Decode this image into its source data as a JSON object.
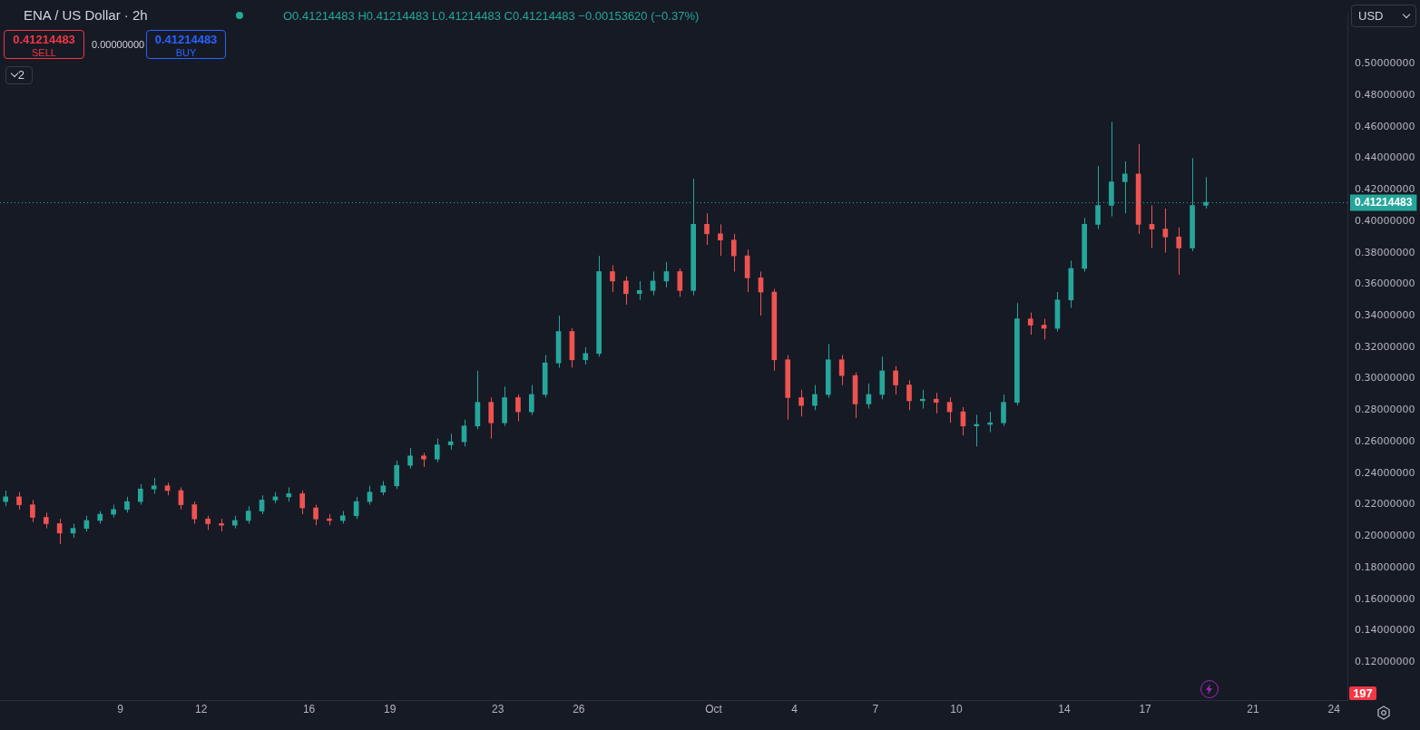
{
  "chart_data": {
    "type": "candlestick",
    "title": "ENA / US Dollar · 2h",
    "subtitle": "O0.41214483 H0.41214483 L0.41214483 C0.41214483 −0.00153620 (−0.37%)",
    "x": [
      "--09-04T18:00",
      "--09-05T06:00",
      "--09-05T18:00",
      "--09-06T06:00",
      "--09-06T18:00",
      "--09-07T06:00",
      "--09-07T18:00",
      "--09-08T06:00",
      "--09-08T18:00",
      "--09-09T06:00",
      "--09-09T18:00",
      "--09-10T06:00",
      "--09-10T18:00",
      "--09-11T06:00",
      "--09-11T18:00",
      "--09-12T06:00",
      "--09-12T18:00",
      "--09-13T06:00",
      "--09-13T18:00",
      "--09-14T06:00",
      "--09-14T18:00",
      "--09-15T06:00",
      "--09-15T18:00",
      "--09-16T06:00",
      "--09-16T18:00",
      "--09-17T06:00",
      "--09-17T18:00",
      "--09-18T06:00",
      "--09-18T18:00",
      "--09-19T06:00",
      "--09-19T18:00",
      "--09-20T06:00",
      "--09-20T18:00",
      "--09-21T06:00",
      "--09-21T18:00",
      "--09-22T06:00",
      "--09-22T18:00",
      "--09-23T06:00",
      "--09-23T18:00",
      "--09-24T06:00",
      "--09-24T18:00",
      "--09-25T06:00",
      "--09-25T18:00",
      "--09-26T06:00",
      "--09-26T18:00",
      "--09-27T06:00",
      "--09-27T18:00",
      "--09-28T06:00",
      "--09-28T18:00",
      "--09-29T06:00",
      "--09-29T18:00",
      "--09-30T06:00",
      "--09-30T18:00",
      "--10-01T06:00",
      "--10-01T18:00",
      "--10-02T06:00",
      "--10-02T18:00",
      "--10-03T06:00",
      "--10-03T18:00",
      "--10-04T06:00",
      "--10-04T18:00",
      "--10-05T06:00",
      "--10-05T18:00",
      "--10-06T06:00",
      "--10-06T18:00",
      "--10-07T06:00",
      "--10-07T18:00",
      "--10-08T06:00",
      "--10-08T18:00",
      "--10-09T06:00",
      "--10-09T18:00",
      "--10-10T06:00",
      "--10-10T18:00",
      "--10-11T06:00",
      "--10-11T18:00",
      "--10-12T06:00",
      "--10-12T18:00",
      "--10-13T06:00",
      "--10-13T18:00",
      "--10-14T06:00",
      "--10-14T18:00",
      "--10-15T06:00",
      "--10-15T18:00",
      "--10-16T06:00",
      "--10-16T18:00",
      "--10-17T06:00",
      "--10-17T18:00",
      "--10-18T06:00",
      "--10-18T18:00",
      "--10-19T06:00"
    ],
    "ohlc": [
      [
        0.222,
        0.229,
        0.219,
        0.225
      ],
      [
        0.225,
        0.228,
        0.217,
        0.22
      ],
      [
        0.22,
        0.223,
        0.209,
        0.212
      ],
      [
        0.212,
        0.215,
        0.205,
        0.208
      ],
      [
        0.208,
        0.211,
        0.195,
        0.202
      ],
      [
        0.202,
        0.208,
        0.199,
        0.205
      ],
      [
        0.205,
        0.213,
        0.203,
        0.21
      ],
      [
        0.21,
        0.216,
        0.208,
        0.214
      ],
      [
        0.214,
        0.22,
        0.212,
        0.217
      ],
      [
        0.217,
        0.225,
        0.215,
        0.222
      ],
      [
        0.222,
        0.233,
        0.22,
        0.23
      ],
      [
        0.23,
        0.237,
        0.227,
        0.232
      ],
      [
        0.232,
        0.234,
        0.226,
        0.229
      ],
      [
        0.229,
        0.231,
        0.217,
        0.22
      ],
      [
        0.22,
        0.222,
        0.208,
        0.211
      ],
      [
        0.211,
        0.213,
        0.204,
        0.208
      ],
      [
        0.208,
        0.211,
        0.203,
        0.207
      ],
      [
        0.207,
        0.213,
        0.205,
        0.21
      ],
      [
        0.21,
        0.219,
        0.208,
        0.216
      ],
      [
        0.216,
        0.226,
        0.214,
        0.223
      ],
      [
        0.223,
        0.228,
        0.221,
        0.225
      ],
      [
        0.225,
        0.231,
        0.222,
        0.227
      ],
      [
        0.227,
        0.229,
        0.214,
        0.218
      ],
      [
        0.218,
        0.22,
        0.207,
        0.211
      ],
      [
        0.211,
        0.214,
        0.207,
        0.21
      ],
      [
        0.21,
        0.216,
        0.208,
        0.213
      ],
      [
        0.213,
        0.225,
        0.211,
        0.222
      ],
      [
        0.222,
        0.232,
        0.22,
        0.228
      ],
      [
        0.228,
        0.235,
        0.226,
        0.232
      ],
      [
        0.232,
        0.248,
        0.23,
        0.245
      ],
      [
        0.245,
        0.256,
        0.243,
        0.251
      ],
      [
        0.251,
        0.253,
        0.244,
        0.249
      ],
      [
        0.249,
        0.262,
        0.247,
        0.258
      ],
      [
        0.258,
        0.265,
        0.255,
        0.26
      ],
      [
        0.26,
        0.274,
        0.257,
        0.27
      ],
      [
        0.27,
        0.305,
        0.268,
        0.285
      ],
      [
        0.285,
        0.288,
        0.262,
        0.272
      ],
      [
        0.272,
        0.295,
        0.27,
        0.288
      ],
      [
        0.288,
        0.29,
        0.273,
        0.279
      ],
      [
        0.279,
        0.296,
        0.277,
        0.29
      ],
      [
        0.29,
        0.315,
        0.288,
        0.31
      ],
      [
        0.31,
        0.34,
        0.307,
        0.33
      ],
      [
        0.33,
        0.332,
        0.307,
        0.312
      ],
      [
        0.312,
        0.32,
        0.309,
        0.316
      ],
      [
        0.316,
        0.378,
        0.314,
        0.368
      ],
      [
        0.368,
        0.372,
        0.355,
        0.362
      ],
      [
        0.362,
        0.365,
        0.347,
        0.354
      ],
      [
        0.354,
        0.362,
        0.35,
        0.356
      ],
      [
        0.356,
        0.368,
        0.353,
        0.362
      ],
      [
        0.362,
        0.374,
        0.358,
        0.368
      ],
      [
        0.368,
        0.37,
        0.352,
        0.356
      ],
      [
        0.356,
        0.427,
        0.353,
        0.398
      ],
      [
        0.398,
        0.405,
        0.385,
        0.392
      ],
      [
        0.392,
        0.398,
        0.378,
        0.388
      ],
      [
        0.388,
        0.392,
        0.368,
        0.378
      ],
      [
        0.378,
        0.382,
        0.355,
        0.364
      ],
      [
        0.364,
        0.368,
        0.34,
        0.355
      ],
      [
        0.355,
        0.357,
        0.305,
        0.312
      ],
      [
        0.312,
        0.315,
        0.274,
        0.288
      ],
      [
        0.288,
        0.293,
        0.276,
        0.283
      ],
      [
        0.283,
        0.296,
        0.28,
        0.29
      ],
      [
        0.29,
        0.322,
        0.288,
        0.312
      ],
      [
        0.312,
        0.315,
        0.296,
        0.302
      ],
      [
        0.302,
        0.304,
        0.275,
        0.284
      ],
      [
        0.284,
        0.297,
        0.281,
        0.29
      ],
      [
        0.29,
        0.314,
        0.287,
        0.305
      ],
      [
        0.305,
        0.308,
        0.29,
        0.296
      ],
      [
        0.296,
        0.299,
        0.28,
        0.286
      ],
      [
        0.286,
        0.293,
        0.281,
        0.287
      ],
      [
        0.287,
        0.291,
        0.278,
        0.285
      ],
      [
        0.285,
        0.288,
        0.272,
        0.279
      ],
      [
        0.279,
        0.282,
        0.264,
        0.27
      ],
      [
        0.27,
        0.277,
        0.257,
        0.271
      ],
      [
        0.271,
        0.279,
        0.266,
        0.272
      ],
      [
        0.272,
        0.29,
        0.27,
        0.285
      ],
      [
        0.285,
        0.348,
        0.283,
        0.338
      ],
      [
        0.338,
        0.342,
        0.328,
        0.334
      ],
      [
        0.334,
        0.338,
        0.325,
        0.332
      ],
      [
        0.332,
        0.355,
        0.33,
        0.35
      ],
      [
        0.35,
        0.375,
        0.345,
        0.37
      ],
      [
        0.37,
        0.402,
        0.368,
        0.398
      ],
      [
        0.398,
        0.435,
        0.395,
        0.41
      ],
      [
        0.41,
        0.463,
        0.403,
        0.425
      ],
      [
        0.425,
        0.438,
        0.405,
        0.43
      ],
      [
        0.43,
        0.449,
        0.392,
        0.398
      ],
      [
        0.398,
        0.41,
        0.383,
        0.395
      ],
      [
        0.395,
        0.408,
        0.38,
        0.39
      ],
      [
        0.39,
        0.396,
        0.366,
        0.383
      ],
      [
        0.383,
        0.44,
        0.381,
        0.41
      ],
      [
        0.41,
        0.428,
        0.408,
        0.412
      ]
    ],
    "colors": [
      "#26a69a",
      "#ef5350",
      "#ef5350",
      "#ef5350",
      "#ef5350",
      "#26a69a",
      "#26a69a",
      "#26a69a",
      "#26a69a",
      "#26a69a",
      "#26a69a",
      "#26a69a",
      "#ef5350",
      "#ef5350",
      "#ef5350",
      "#ef5350",
      "#ef5350",
      "#26a69a",
      "#26a69a",
      "#26a69a",
      "#26a69a",
      "#26a69a",
      "#ef5350",
      "#ef5350",
      "#ef5350",
      "#26a69a",
      "#26a69a",
      "#26a69a",
      "#26a69a",
      "#26a69a",
      "#26a69a",
      "#ef5350",
      "#26a69a",
      "#26a69a",
      "#26a69a",
      "#26a69a",
      "#ef5350",
      "#26a69a",
      "#ef5350",
      "#26a69a",
      "#26a69a",
      "#26a69a",
      "#ef5350",
      "#26a69a",
      "#26a69a",
      "#ef5350",
      "#ef5350",
      "#26a69a",
      "#26a69a",
      "#26a69a",
      "#ef5350",
      "#26a69a",
      "#ef5350",
      "#ef5350",
      "#ef5350",
      "#ef5350",
      "#ef5350",
      "#ef5350",
      "#ef5350",
      "#ef5350",
      "#26a69a",
      "#26a69a",
      "#ef5350",
      "#ef5350",
      "#26a69a",
      "#26a69a",
      "#ef5350",
      "#ef5350",
      "#26a69a",
      "#ef5350",
      "#ef5350",
      "#ef5350",
      "#26a69a",
      "#26a69a",
      "#26a69a",
      "#26a69a",
      "#ef5350",
      "#ef5350",
      "#26a69a",
      "#26a69a",
      "#26a69a",
      "#26a69a",
      "#26a69a",
      "#26a69a",
      "#ef5350",
      "#ef5350",
      "#ef5350",
      "#ef5350",
      "#26a69a",
      "#26a69a"
    ],
    "xlim": [
      "--09-04T13:00",
      "--10-24T12:00"
    ],
    "xticks": [
      {
        "value": "--09-09",
        "label": "9"
      },
      {
        "value": "--09-12",
        "label": "12"
      },
      {
        "value": "--09-16",
        "label": "16"
      },
      {
        "value": "--09-19",
        "label": "19"
      },
      {
        "value": "--09-23",
        "label": "23"
      },
      {
        "value": "--09-26",
        "label": "26"
      },
      {
        "value": "--10-01",
        "label": "Oct"
      },
      {
        "value": "--10-04",
        "label": "4"
      },
      {
        "value": "--10-07",
        "label": "7"
      },
      {
        "value": "--10-10",
        "label": "10"
      },
      {
        "value": "--10-14",
        "label": "14"
      },
      {
        "value": "--10-17",
        "label": "17"
      },
      {
        "value": "--10-21",
        "label": "21"
      },
      {
        "value": "--10-24",
        "label": "24"
      }
    ],
    "ylim": [
      0.096,
      0.532
    ],
    "yticks": [
      {
        "value": 0.12,
        "label": "0.12000000"
      },
      {
        "value": 0.14,
        "label": "0.14000000"
      },
      {
        "value": 0.16,
        "label": "0.16000000"
      },
      {
        "value": 0.18,
        "label": "0.18000000"
      },
      {
        "value": 0.2,
        "label": "0.20000000"
      },
      {
        "value": 0.22,
        "label": "0.22000000"
      },
      {
        "value": 0.24,
        "label": "0.24000000"
      },
      {
        "value": 0.26,
        "label": "0.26000000"
      },
      {
        "value": 0.28,
        "label": "0.28000000"
      },
      {
        "value": 0.3,
        "label": "0.30000000"
      },
      {
        "value": 0.32,
        "label": "0.32000000"
      },
      {
        "value": 0.34,
        "label": "0.34000000"
      },
      {
        "value": 0.36,
        "label": "0.36000000"
      },
      {
        "value": 0.38,
        "label": "0.38000000"
      },
      {
        "value": 0.4,
        "label": "0.40000000"
      },
      {
        "value": 0.42,
        "label": "0.42000000"
      },
      {
        "value": 0.44,
        "label": "0.44000000"
      },
      {
        "value": 0.46,
        "label": "0.46000000"
      },
      {
        "value": 0.48,
        "label": "0.48000000"
      },
      {
        "value": 0.5,
        "label": "0.50000000"
      }
    ],
    "ref_lines": [
      {
        "axis": "y",
        "value": 0.41214483,
        "label": "0.41214483",
        "color": "#26a69a",
        "line_style": "dotted"
      }
    ],
    "annotations": [
      "0.41214483",
      "SELL",
      "0.00000000",
      "0.41214483",
      "BUY",
      "2",
      "USD",
      "197"
    ]
  }
}
